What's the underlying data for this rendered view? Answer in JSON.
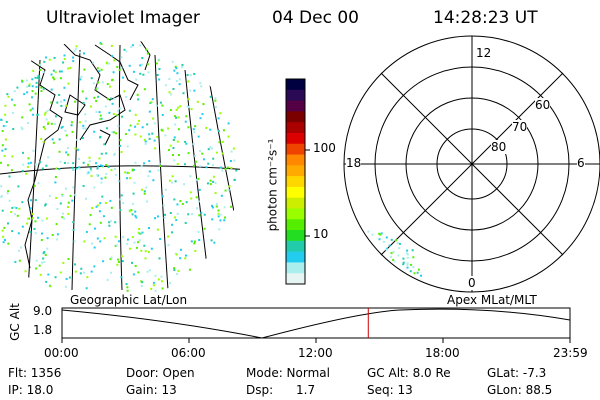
{
  "header": {
    "instrument": "Ultraviolet Imager",
    "date": "04 Dec 00",
    "time": "14:28:23 UT"
  },
  "colorbar": {
    "label": "photon cm⁻²s⁻¹",
    "ticks": [
      "100",
      "10"
    ],
    "colors": [
      "#000040",
      "#2a0a55",
      "#550044",
      "#7a0000",
      "#aa0000",
      "#dd0000",
      "#ee4400",
      "#ff8800",
      "#ffaa00",
      "#ffd700",
      "#ffff00",
      "#ccee00",
      "#99ff00",
      "#55ee00",
      "#22dd22",
      "#22ccaa",
      "#22ccee",
      "#aaeeee",
      "#e6f4f4"
    ]
  },
  "polar": {
    "mlt_labels": {
      "top": "12",
      "left": "18",
      "right": "6",
      "bottom": "0"
    },
    "lat_labels": [
      "60",
      "70",
      "80"
    ]
  },
  "timeline": {
    "left_label": "Geographic Lat/Lon",
    "right_label": "Apex  MLat/MLT",
    "axis_title": "GC Alt",
    "y_max": "9.0",
    "y_min": "1.8",
    "x_ticks": [
      "00:00",
      "06:00",
      "12:00",
      "18:00",
      "23:59"
    ],
    "current_time_hours": 14.47,
    "marker_color": "#cc0000"
  },
  "footer": {
    "row1": {
      "flt": "Flt: 1356",
      "door": "Door: Open",
      "mode": "Mode: Normal",
      "gc_alt": "GC Alt: 8.0 Re",
      "glat": "GLat:  -7.3"
    },
    "row2": {
      "ip": "IP: 18.0",
      "gain": "Gain: 13",
      "dsp": "Dsp:      1.7",
      "seq": "Seq: 13",
      "glon": "GLon:  88.5"
    }
  }
}
